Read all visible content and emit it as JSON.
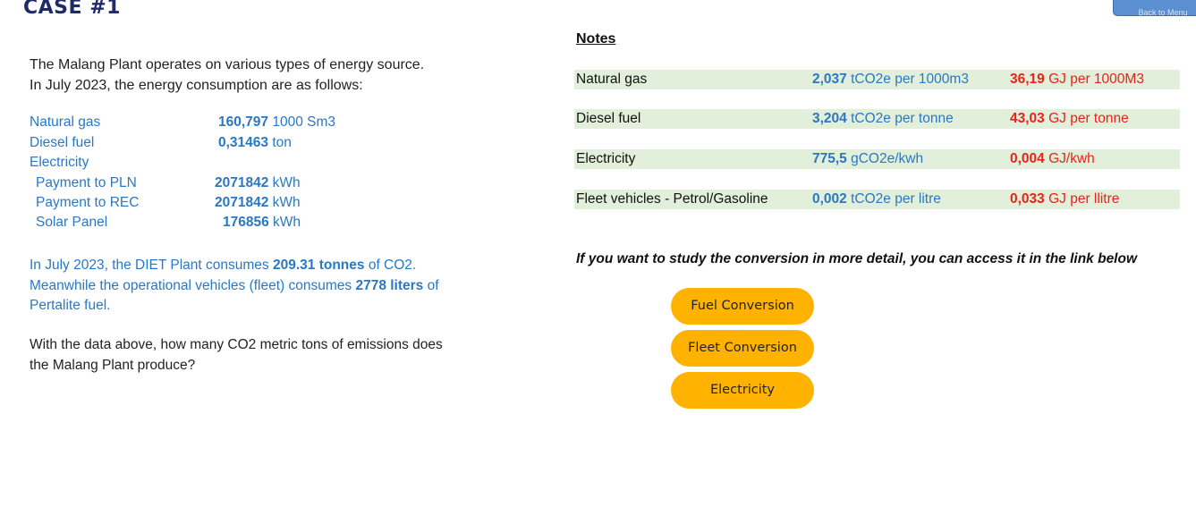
{
  "header": {
    "case_title": "CASE #1",
    "back_button_label": "Back to Menu"
  },
  "intro": {
    "line1": "The Malang Plant operates on various types of energy source.",
    "line2": "In July 2023, the energy consumption are as follows:"
  },
  "consumption": {
    "natural_gas": {
      "label": "Natural gas",
      "value": "160,797",
      "unit": "1000 Sm3"
    },
    "diesel_fuel": {
      "label": "Diesel fuel",
      "value": "0,31463",
      "unit": "ton"
    },
    "electricity": {
      "label": "Electricity"
    },
    "payment_pln": {
      "label": "Payment to PLN",
      "value": "2071842",
      "unit": "kWh"
    },
    "payment_rec": {
      "label": "Payment to REC",
      "value": "2071842",
      "unit": "kWh"
    },
    "solar_panel": {
      "label": "Solar Panel",
      "value": "176856",
      "unit": "kWh"
    }
  },
  "diet_paragraph": {
    "part1": "In July 2023, the DIET Plant consumes ",
    "co2_amount": "209.31 tonnes",
    "part2": " of CO2.",
    "part3": "Meanwhile the operational vehicles (fleet) consumes ",
    "fleet_amount": "2778 liters",
    "part4": " of",
    "part5": "Pertalite fuel."
  },
  "question": {
    "line1": "With the data above, how many CO2 metric tons of emissions does",
    "line2": "the Malang Plant produce?"
  },
  "notes": {
    "title": "Notes",
    "rows": [
      {
        "name": "Natural gas",
        "ef_value": "2,037",
        "ef_unit": "tCO2e per 1000m3",
        "en_value": "36,19",
        "en_unit": "GJ per 1000M3"
      },
      {
        "name": "Diesel fuel",
        "ef_value": "3,204",
        "ef_unit": "tCO2e per tonne",
        "en_value": "43,03",
        "en_unit": "GJ per tonne"
      },
      {
        "name": "Electricity",
        "ef_value": "775,5",
        "ef_unit": "gCO2e/kwh",
        "en_value": "0,004",
        "en_unit": "GJ/kwh"
      },
      {
        "name": "Fleet vehicles - Petrol/Gasoline",
        "ef_value": "0,002",
        "ef_unit": "tCO2e per litre",
        "en_value": "0,033",
        "en_unit": "GJ per llitre"
      }
    ]
  },
  "study_text": "If you want to study the conversion in more detail, you can access it in the link below",
  "buttons": {
    "fuel": "Fuel Conversion",
    "fleet": "Fleet Conversion",
    "electricity": "Electricity"
  },
  "colors": {
    "title": "#1f2a6b",
    "value_blue": "#2a78c4",
    "energy_red": "#e8231b",
    "row_green": "#e2efda",
    "button_orange": "#ffb300",
    "back_button": "#5b8fd1"
  }
}
